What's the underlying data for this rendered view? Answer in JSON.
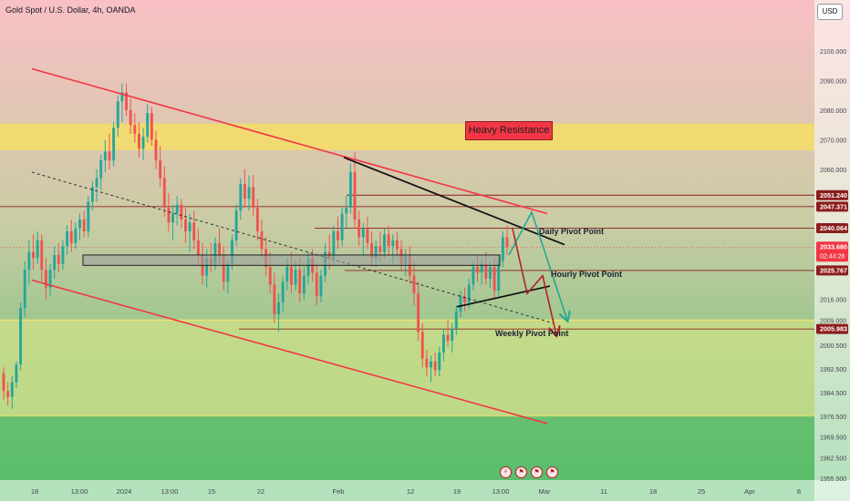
{
  "header": {
    "title": "Gold Spot / U.S. Dollar, 4h, OANDA",
    "currency_button": "USD"
  },
  "annotations": {
    "resistance_label": "Heavy Resistance",
    "daily_pivot": "Daily Pivot Point",
    "hourly_pivot": "Hourly Pivot Point",
    "weekly_pivot": "Weekly Pivot Point"
  },
  "icons": {
    "lightning": "lightning-icon",
    "events": "event-flag-icon"
  },
  "colors": {
    "bg_top": "#f9c0c4",
    "bg_mid": "#c7cea3",
    "bg_bottom": "#55bd6a",
    "resistance_zone": "#f4dc6c",
    "support_zone": "#c9dd8a",
    "bull": "#26a69a",
    "bear": "#ef5350",
    "channel": "#f23645",
    "pivot_line": "#8b1d1d",
    "price_tag": "#f23645"
  },
  "chart_data": {
    "type": "candlestick",
    "title": "Gold Spot / U.S. Dollar, 4h, OANDA",
    "y_axis": {
      "ticks": [
        "2100.000",
        "2090.000",
        "2080.000",
        "2070.000",
        "2060.000",
        "2040.064",
        "2033.680",
        "2025.767",
        "2016.000",
        "2009.000",
        "2005.983",
        "2000.500",
        "1992.500",
        "1984.500",
        "1976.500",
        "1969.500",
        "1962.500",
        "1955.500"
      ],
      "ylim": [
        1955.5,
        2104
      ]
    },
    "x_axis": {
      "ticks": [
        "18",
        "13:00",
        "2024",
        "13:00",
        "15",
        "22",
        "Feb",
        "12",
        "19",
        "13:00",
        "Mar",
        "11",
        "18",
        "25",
        "Apr",
        "8"
      ]
    },
    "price_tags": [
      {
        "value": 2051.24,
        "label": "2051.240"
      },
      {
        "value": 2047.371,
        "label": "2047.371"
      },
      {
        "value": 2040.064,
        "label": "2040.064"
      },
      {
        "value": 2033.68,
        "label": "2033.680",
        "sublabel": "02:44:28",
        "current": true
      },
      {
        "value": 2025.767,
        "label": "2025.767"
      },
      {
        "value": 2005.983,
        "label": "2005.983"
      }
    ],
    "zones": [
      {
        "name": "Heavy Resistance",
        "y1": 2066.5,
        "y2": 2075.5
      },
      {
        "name": "support",
        "y1": 1976.5,
        "y2": 2009.0
      }
    ],
    "channel": {
      "upper": {
        "x1": 35,
        "y1": 2094.0,
        "x2": 600,
        "y2": 2045.0
      },
      "lower": {
        "x1": 35,
        "y1": 2022.5,
        "x2": 600,
        "y2": 1974.0
      }
    },
    "candles": [
      [
        1991.0,
        1993.0,
        1982.0,
        1985.0
      ],
      [
        1985.0,
        1988.0,
        1980.0,
        1983.0
      ],
      [
        1983.0,
        1990.0,
        1979.0,
        1988.0
      ],
      [
        1988.0,
        1995.0,
        1986.0,
        1994.0
      ],
      [
        1994.0,
        2015.0,
        1992.0,
        2013.0
      ],
      [
        2013.0,
        2029.0,
        2010.0,
        2026.0
      ],
      [
        2026.0,
        2036.0,
        2021.0,
        2032.0
      ],
      [
        2032.0,
        2038.0,
        2026.0,
        2030.0
      ],
      [
        2030.0,
        2039.0,
        2028.0,
        2036.0
      ],
      [
        2036.0,
        2038.0,
        2022.0,
        2026.0
      ],
      [
        2026.0,
        2030.0,
        2016.0,
        2020.0
      ],
      [
        2020.0,
        2028.0,
        2017.0,
        2026.0
      ],
      [
        2026.0,
        2034.0,
        2023.0,
        2031.0
      ],
      [
        2031.0,
        2035.0,
        2025.0,
        2028.0
      ],
      [
        2028.0,
        2036.0,
        2026.0,
        2034.0
      ],
      [
        2034.0,
        2041.0,
        2031.0,
        2039.0
      ],
      [
        2039.0,
        2043.0,
        2032.0,
        2035.0
      ],
      [
        2035.0,
        2042.0,
        2033.0,
        2040.0
      ],
      [
        2040.0,
        2045.0,
        2036.0,
        2043.0
      ],
      [
        2043.0,
        2046.0,
        2037.0,
        2039.0
      ],
      [
        2039.0,
        2051.0,
        2037.0,
        2049.0
      ],
      [
        2049.0,
        2056.0,
        2046.0,
        2054.0
      ],
      [
        2054.0,
        2060.0,
        2049.0,
        2057.0
      ],
      [
        2057.0,
        2065.0,
        2053.0,
        2063.0
      ],
      [
        2063.0,
        2070.0,
        2059.0,
        2066.0
      ],
      [
        2066.0,
        2072.0,
        2060.0,
        2063.0
      ],
      [
        2063.0,
        2076.0,
        2061.0,
        2074.0
      ],
      [
        2074.0,
        2085.0,
        2071.0,
        2083.0
      ],
      [
        2083.0,
        2089.0,
        2076.0,
        2086.0
      ],
      [
        2086.0,
        2089.0,
        2078.0,
        2080.0
      ],
      [
        2080.0,
        2084.0,
        2072.0,
        2075.0
      ],
      [
        2075.0,
        2079.0,
        2069.0,
        2072.0
      ],
      [
        2072.0,
        2076.0,
        2064.0,
        2067.0
      ],
      [
        2067.0,
        2074.0,
        2063.0,
        2071.0
      ],
      [
        2071.0,
        2082.0,
        2069.0,
        2079.0
      ],
      [
        2079.0,
        2081.0,
        2068.0,
        2070.0
      ],
      [
        2070.0,
        2073.0,
        2060.0,
        2063.0
      ],
      [
        2063.0,
        2068.0,
        2054.0,
        2057.0
      ],
      [
        2057.0,
        2061.0,
        2044.0,
        2047.0
      ],
      [
        2047.0,
        2052.0,
        2039.0,
        2042.0
      ],
      [
        2042.0,
        2048.0,
        2036.0,
        2045.0
      ],
      [
        2045.0,
        2051.0,
        2041.0,
        2048.0
      ],
      [
        2048.0,
        2050.0,
        2040.0,
        2043.0
      ],
      [
        2043.0,
        2047.0,
        2035.0,
        2039.0
      ],
      [
        2039.0,
        2045.0,
        2032.0,
        2042.0
      ],
      [
        2042.0,
        2046.0,
        2033.0,
        2036.0
      ],
      [
        2036.0,
        2040.0,
        2028.0,
        2031.0
      ],
      [
        2031.0,
        2035.0,
        2021.0,
        2024.0
      ],
      [
        2024.0,
        2033.0,
        2020.0,
        2030.0
      ],
      [
        2030.0,
        2035.0,
        2025.0,
        2028.0
      ],
      [
        2028.0,
        2037.0,
        2026.0,
        2035.0
      ],
      [
        2035.0,
        2040.0,
        2028.0,
        2031.0
      ],
      [
        2031.0,
        2034.0,
        2019.0,
        2022.0
      ],
      [
        2022.0,
        2030.0,
        2018.0,
        2028.0
      ],
      [
        2028.0,
        2038.0,
        2026.0,
        2036.0
      ],
      [
        2036.0,
        2048.0,
        2034.0,
        2046.0
      ],
      [
        2046.0,
        2057.0,
        2043.0,
        2055.0
      ],
      [
        2055.0,
        2060.0,
        2047.0,
        2050.0
      ],
      [
        2050.0,
        2058.0,
        2046.0,
        2054.0
      ],
      [
        2054.0,
        2058.0,
        2044.0,
        2047.0
      ],
      [
        2047.0,
        2050.0,
        2036.0,
        2039.0
      ],
      [
        2039.0,
        2043.0,
        2030.0,
        2033.0
      ],
      [
        2033.0,
        2037.0,
        2024.0,
        2027.0
      ],
      [
        2027.0,
        2032.0,
        2018.0,
        2021.0
      ],
      [
        2021.0,
        2025.0,
        2008.0,
        2011.0
      ],
      [
        2011.0,
        2018.0,
        2005.0,
        2015.0
      ],
      [
        2015.0,
        2024.0,
        2012.0,
        2022.0
      ],
      [
        2022.0,
        2030.0,
        2019.0,
        2027.0
      ],
      [
        2027.0,
        2032.0,
        2018.0,
        2021.0
      ],
      [
        2021.0,
        2029.0,
        2019.0,
        2026.0
      ],
      [
        2026.0,
        2030.0,
        2015.0,
        2018.0
      ],
      [
        2018.0,
        2027.0,
        2016.0,
        2024.0
      ],
      [
        2024.0,
        2032.0,
        2021.0,
        2030.0
      ],
      [
        2030.0,
        2033.0,
        2022.0,
        2025.0
      ],
      [
        2025.0,
        2028.0,
        2014.0,
        2017.0
      ],
      [
        2017.0,
        2026.0,
        2015.0,
        2024.0
      ],
      [
        2024.0,
        2035.0,
        2022.0,
        2032.0
      ],
      [
        2032.0,
        2038.0,
        2026.0,
        2030.0
      ],
      [
        2030.0,
        2041.0,
        2028.0,
        2039.0
      ],
      [
        2039.0,
        2044.0,
        2033.0,
        2036.0
      ],
      [
        2036.0,
        2047.0,
        2034.0,
        2045.0
      ],
      [
        2045.0,
        2051.0,
        2040.0,
        2047.0
      ],
      [
        2047.0,
        2062.0,
        2045.0,
        2059.0
      ],
      [
        2059.0,
        2066.0,
        2040.0,
        2043.0
      ],
      [
        2043.0,
        2046.0,
        2034.0,
        2037.0
      ],
      [
        2037.0,
        2042.0,
        2031.0,
        2040.0
      ],
      [
        2040.0,
        2044.0,
        2033.0,
        2035.0
      ],
      [
        2035.0,
        2039.0,
        2027.0,
        2030.0
      ],
      [
        2030.0,
        2036.0,
        2027.0,
        2034.0
      ],
      [
        2034.0,
        2039.0,
        2029.0,
        2032.0
      ],
      [
        2032.0,
        2040.0,
        2030.0,
        2038.0
      ],
      [
        2038.0,
        2041.0,
        2031.0,
        2034.0
      ],
      [
        2034.0,
        2038.0,
        2028.0,
        2036.0
      ],
      [
        2036.0,
        2039.0,
        2030.0,
        2033.0
      ],
      [
        2033.0,
        2036.0,
        2026.0,
        2028.0
      ],
      [
        2028.0,
        2033.0,
        2024.0,
        2031.0
      ],
      [
        2031.0,
        2034.0,
        2021.0,
        2024.0
      ],
      [
        2024.0,
        2029.0,
        2014.0,
        2018.0
      ],
      [
        2018.0,
        2022.0,
        2002.0,
        2005.0
      ],
      [
        2005.0,
        2008.0,
        1993.0,
        1996.0
      ],
      [
        1996.0,
        1999.0,
        1990.0,
        1993.0
      ],
      [
        1993.0,
        1997.0,
        1988.0,
        1995.0
      ],
      [
        1995.0,
        1998.0,
        1990.0,
        1992.0
      ],
      [
        1992.0,
        2000.0,
        1990.0,
        1998.0
      ],
      [
        1998.0,
        2006.0,
        1995.0,
        2004.0
      ],
      [
        2004.0,
        2009.0,
        2000.0,
        2002.0
      ],
      [
        2002.0,
        2008.0,
        1998.0,
        2006.0
      ],
      [
        2006.0,
        2014.0,
        2004.0,
        2012.0
      ],
      [
        2012.0,
        2019.0,
        2010.0,
        2017.0
      ],
      [
        2017.0,
        2020.0,
        2012.0,
        2015.0
      ],
      [
        2015.0,
        2023.0,
        2013.0,
        2021.0
      ],
      [
        2021.0,
        2029.0,
        2019.0,
        2027.0
      ],
      [
        2027.0,
        2031.0,
        2022.0,
        2025.0
      ],
      [
        2025.0,
        2030.0,
        2021.0,
        2028.0
      ],
      [
        2028.0,
        2032.0,
        2021.0,
        2023.0
      ],
      [
        2023.0,
        2029.0,
        2020.0,
        2027.0
      ],
      [
        2027.0,
        2030.0,
        2016.0,
        2019.0
      ],
      [
        2019.0,
        2031.0,
        2017.0,
        2029.0
      ],
      [
        2029.0,
        2039.0,
        2027.0,
        2037.0
      ],
      [
        2037.0,
        2041.0,
        2031.0,
        2033.7
      ]
    ]
  }
}
